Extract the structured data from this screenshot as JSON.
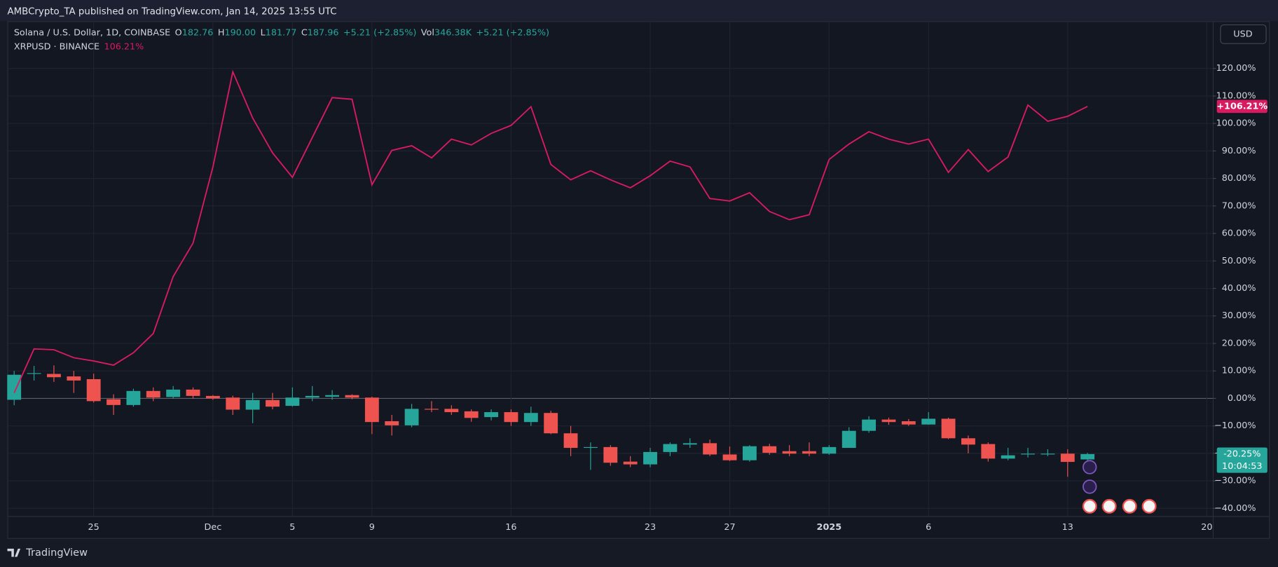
{
  "header": "AMBCrypto_TA published on TradingView.com, Jan 14, 2025 13:55 UTC",
  "footer": "TradingView",
  "currency": "USD",
  "chart_data": {
    "type": "candlestick",
    "legend": {
      "main": [
        {
          "text": "Solana / U.S. Dollar, 1D, COINBASE",
          "color": "#d1d4dc"
        },
        {
          "text": "O",
          "color": "#d1d4dc"
        },
        {
          "text": "182.76",
          "color": "#26a69a"
        },
        {
          "text": "H",
          "color": "#d1d4dc"
        },
        {
          "text": "190.00",
          "color": "#26a69a"
        },
        {
          "text": "L",
          "color": "#d1d4dc"
        },
        {
          "text": "181.77",
          "color": "#26a69a"
        },
        {
          "text": "C",
          "color": "#d1d4dc"
        },
        {
          "text": "187.96",
          "color": "#26a69a"
        },
        {
          "text": "+5.21 (+2.85%)",
          "color": "#26a69a"
        },
        {
          "text": "Vol",
          "color": "#d1d4dc"
        },
        {
          "text": "346.38K",
          "color": "#26a69a"
        },
        {
          "text": "+5.21 (+2.85%)",
          "color": "#26a69a"
        }
      ],
      "compare": [
        {
          "text": "XRPUSD · BINANCE",
          "color": "#d1d4dc"
        },
        {
          "text": "106.21%",
          "color": "#d81b60"
        }
      ]
    },
    "badges": {
      "line": "+106.21%",
      "price": "-20.25%",
      "countdown": "10:04:53"
    },
    "categories": [
      null,
      null,
      null,
      null,
      "25",
      null,
      null,
      null,
      null,
      null,
      "Dec",
      null,
      null,
      null,
      "5",
      null,
      null,
      null,
      "9",
      null,
      null,
      null,
      null,
      null,
      null,
      "16",
      null,
      null,
      null,
      null,
      null,
      null,
      "23",
      null,
      null,
      null,
      "27",
      null,
      null,
      null,
      null,
      "2025",
      null,
      null,
      null,
      null,
      "6",
      null,
      null,
      null,
      null,
      null,
      null,
      "13",
      null,
      null,
      null,
      null,
      null,
      null,
      "20"
    ],
    "ylim": [
      -50.8,
      136.9
    ],
    "yticks": [
      {
        "value": -40,
        "label": "−40.00%"
      },
      {
        "value": -30,
        "label": "−30.00%"
      },
      {
        "value": -20,
        "label": "−20.00%"
      },
      {
        "value": -10,
        "label": "−10.00%"
      },
      {
        "value": 0,
        "label": "0.00%"
      },
      {
        "value": 10,
        "label": "10.00%"
      },
      {
        "value": 20,
        "label": "20.00%"
      },
      {
        "value": 30,
        "label": "30.00%"
      },
      {
        "value": 40,
        "label": "40.00%"
      },
      {
        "value": 50,
        "label": "50.00%"
      },
      {
        "value": 60,
        "label": "60.00%"
      },
      {
        "value": 70,
        "label": "70.00%"
      },
      {
        "value": 80,
        "label": "80.00%"
      },
      {
        "value": 90,
        "label": "90.00%"
      },
      {
        "value": 100,
        "label": "100.00%"
      },
      {
        "value": 110,
        "label": "110.00%"
      },
      {
        "value": 120,
        "label": "120.00%"
      }
    ],
    "grid": true,
    "series": [
      {
        "name": "Solana / U.S. Dollar, 1D, COINBASE",
        "type": "candlestick",
        "up_color": "#26a69a",
        "down_color": "#ef5350",
        "open": [
          -0.5,
          8.9,
          8.9,
          8,
          7,
          -0.3,
          -2.4,
          2.7,
          0.5,
          3.2,
          0.9,
          0.3,
          -4.1,
          -0.6,
          -2.7,
          0.3,
          0.6,
          1.2,
          0.3,
          -8.3,
          -9.8,
          -3.8,
          -3.8,
          -4.7,
          -6.8,
          -5,
          -8.6,
          -5.3,
          -12.7,
          -18,
          -17.7,
          -23,
          -24,
          -19.5,
          -16.8,
          -16.3,
          -20.4,
          -22.5,
          -17.4,
          -19.2,
          -19.2,
          -20.1,
          -18,
          -11.8,
          -7.7,
          -8.3,
          -9.5,
          -7.4,
          -14.5,
          -16.6,
          -21.9,
          -20.4,
          -20.4,
          -20.1,
          -22.2,
          null,
          null,
          null,
          null,
          null,
          null
        ],
        "high": [
          10,
          11.8,
          12,
          10,
          9,
          1.5,
          3.5,
          4,
          4.5,
          4,
          1.2,
          1,
          2,
          2,
          4,
          4.5,
          3,
          1.5,
          0.6,
          -6,
          -2,
          -1,
          -2.5,
          -4,
          -4,
          -4,
          -3,
          -4.5,
          -10,
          -16,
          -17,
          -21,
          -18,
          -16,
          -14.5,
          -15,
          -17.5,
          -17,
          -16.5,
          -17,
          -16,
          -17,
          -10.5,
          -6.5,
          -7,
          -7.5,
          -5,
          -7,
          -13.5,
          -16,
          -18,
          -18,
          -18.5,
          -18.5,
          -19.8,
          null,
          null,
          null,
          null,
          null,
          null
        ],
        "low": [
          -2.5,
          6.5,
          6,
          2,
          -1.5,
          -6,
          -3,
          -1,
          0,
          0,
          -0.5,
          -6,
          -9,
          -4,
          -3,
          -1,
          -0.5,
          -0.3,
          -13,
          -13.5,
          -10.5,
          -5,
          -6,
          -8.5,
          -8,
          -10,
          -10,
          -13,
          -21,
          -26,
          -24.5,
          -25,
          -25,
          -21,
          -18,
          -21,
          -22.8,
          -23,
          -20.5,
          -21,
          -21,
          -20.5,
          -18,
          -12.5,
          -9.6,
          -10,
          -9.6,
          -14.8,
          -20,
          -23,
          -22.5,
          -21.5,
          -21,
          -28.5,
          -23,
          null,
          null,
          null,
          null,
          null,
          null
        ],
        "close": [
          8.6,
          9.2,
          7.7,
          6.5,
          -1,
          -2.4,
          2.7,
          0.3,
          3.2,
          0.9,
          0,
          -4.1,
          -0.6,
          -3,
          0.3,
          0.9,
          1.2,
          0.3,
          -8.6,
          -9.8,
          -3.8,
          -4.1,
          -5,
          -7.1,
          -5,
          -8.6,
          -5.3,
          -12.7,
          -18,
          -17.7,
          -23.4,
          -24,
          -19.5,
          -16.6,
          -16.3,
          -20.4,
          -22.5,
          -17.4,
          -19.8,
          -20.1,
          -20.1,
          -17.7,
          -11.8,
          -7.7,
          -8.6,
          -9.5,
          -7.4,
          -14.5,
          -16.8,
          -21.9,
          -20.7,
          -20.1,
          -20.1,
          -23.1,
          -20.25,
          null,
          null,
          null,
          null,
          null,
          null
        ]
      },
      {
        "name": "XRPUSD · BINANCE",
        "type": "line",
        "color": "#d81b60",
        "values": [
          2,
          18,
          17.7,
          14.8,
          13.6,
          12.1,
          16.6,
          23.6,
          44.3,
          56.5,
          84.2,
          118.8,
          102,
          89.3,
          80.4,
          94.9,
          109.4,
          108.8,
          77.7,
          90.2,
          91.9,
          87.5,
          94.3,
          92.2,
          96.4,
          99.3,
          106.1,
          85.1,
          79.5,
          82.8,
          79.5,
          76.6,
          81,
          86.3,
          84.2,
          72.7,
          71.8,
          74.8,
          68,
          65,
          66.8,
          86.9,
          92.5,
          97,
          94.3,
          92.5,
          94.3,
          82.2,
          90.5,
          82.5,
          87.8,
          106.7,
          100.8,
          102.6,
          106.21,
          null,
          null,
          null,
          null,
          null,
          null
        ]
      }
    ]
  }
}
